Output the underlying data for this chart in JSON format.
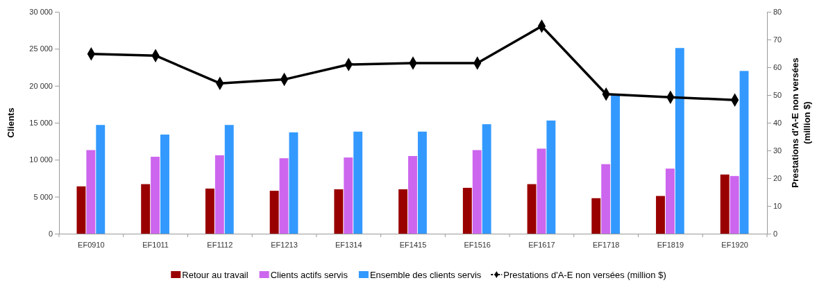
{
  "chart_data": {
    "type": "bar",
    "ylabel": "Clients",
    "y2label": "Prestations d'A-E non versées (million $)",
    "categories": [
      "EF0910",
      "EF1011",
      "EF1112",
      "EF1213",
      "EF1314",
      "EF1415",
      "EF1516",
      "EF1617",
      "EF1718",
      "EF1819",
      "EF1920"
    ],
    "series": [
      {
        "name": "Retour au travail",
        "color": "#990000",
        "values": [
          6400,
          6700,
          6100,
          5800,
          6000,
          6000,
          6200,
          6700,
          4800,
          5100,
          8000
        ]
      },
      {
        "name": "Clients actifs servis",
        "color": "#cc66ee",
        "values": [
          11300,
          10400,
          10600,
          10200,
          10300,
          10500,
          11300,
          11500,
          9400,
          8800,
          7800
        ]
      },
      {
        "name": "Ensemble des clients servis",
        "color": "#3399ff",
        "values": [
          14700,
          13400,
          14700,
          13700,
          13800,
          13800,
          14800,
          15300,
          18700,
          25100,
          22000
        ]
      },
      {
        "name": "Prestations d'A-E non versées (million $)",
        "type": "line",
        "axis": "y2",
        "color": "#000000",
        "marker": "diamond",
        "values": [
          64.8,
          64.2,
          54.2,
          55.6,
          61,
          61.5,
          61.5,
          74.8,
          50.3,
          49.2,
          48.2
        ]
      }
    ],
    "ylim": [
      0,
      30000
    ],
    "yticks": [
      0,
      {
        "value": 5000,
        "label": "5 000"
      },
      {
        "value": 10000,
        "label": "10 000"
      },
      {
        "value": 15000,
        "label": "15 000"
      },
      {
        "value": 20000,
        "label": "20 000"
      },
      {
        "value": 25000,
        "label": "25 000"
      },
      {
        "value": 30000,
        "label": "30 000"
      }
    ],
    "y2lim": [
      0,
      80
    ],
    "y2ticks": [
      0,
      10,
      20,
      30,
      40,
      50,
      60,
      70,
      80
    ],
    "grid": false,
    "legend": "bottom"
  }
}
